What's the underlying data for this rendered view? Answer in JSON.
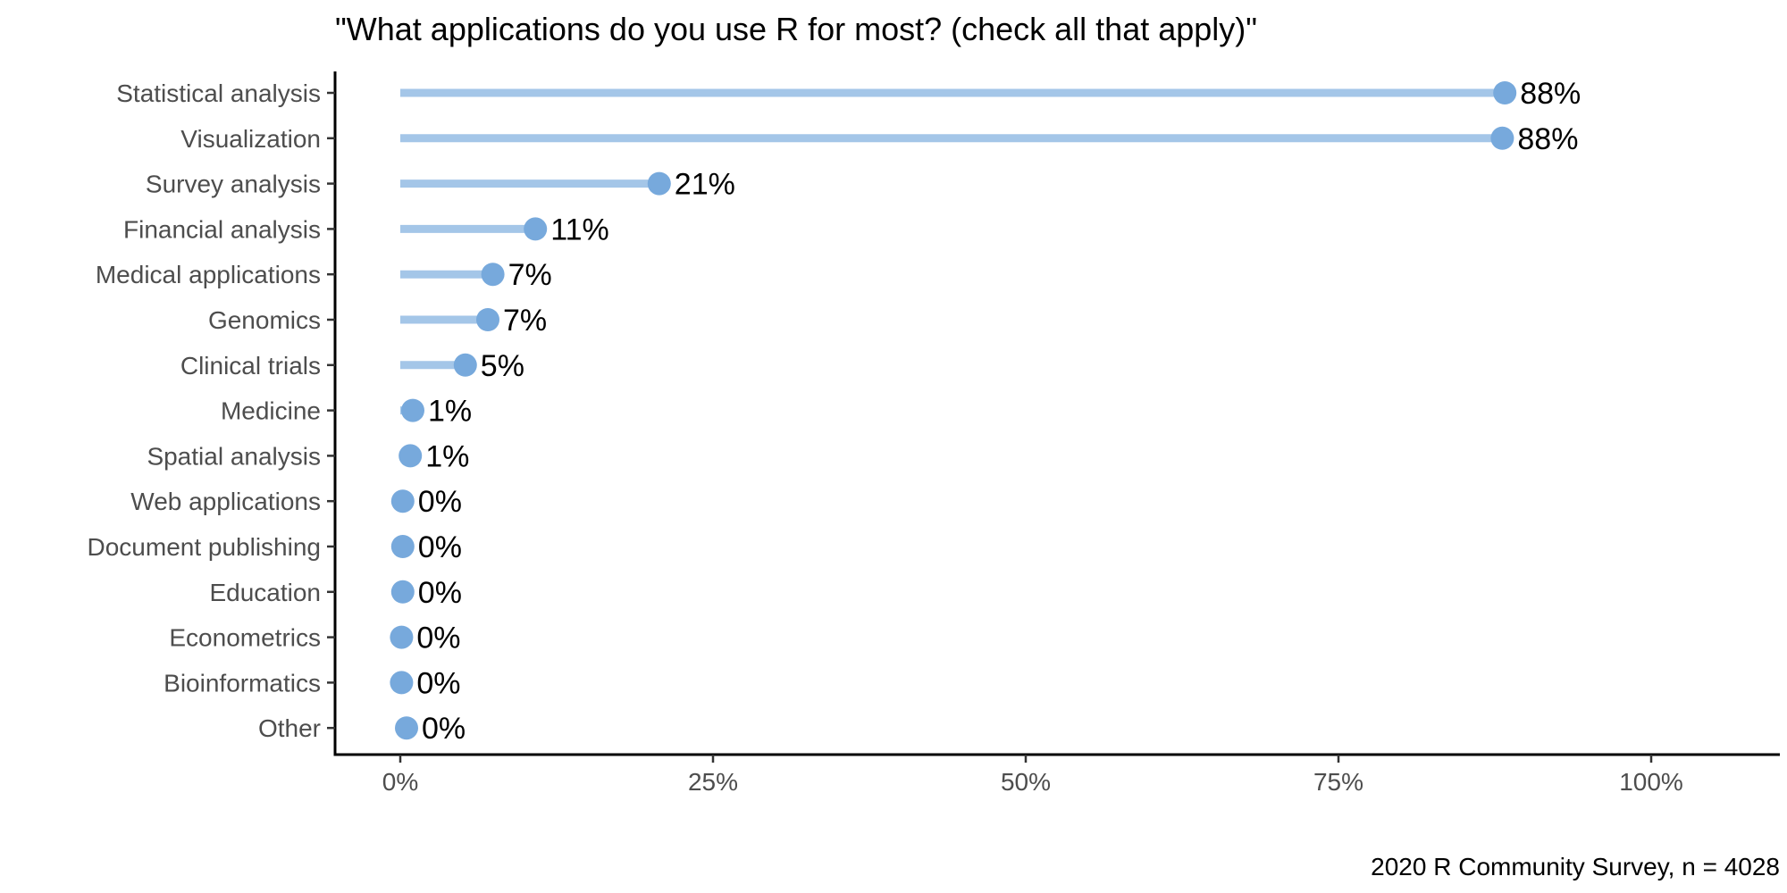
{
  "chart_data": {
    "type": "lollipop",
    "title": "\"What applications do you use R for most? (check all that apply)\"",
    "caption": "2020 R Community Survey, n = 4028",
    "categories": [
      "Statistical analysis",
      "Visualization",
      "Survey analysis",
      "Financial analysis",
      "Medical applications",
      "Genomics",
      "Clinical trials",
      "Medicine",
      "Spatial analysis",
      "Web applications",
      "Document publishing",
      "Education",
      "Econometrics",
      "Bioinformatics",
      "Other"
    ],
    "values": [
      0.883,
      0.881,
      0.207,
      0.108,
      0.074,
      0.07,
      0.052,
      0.01,
      0.008,
      0.002,
      0.002,
      0.002,
      0.001,
      0.001,
      0.005
    ],
    "value_labels": [
      "88%",
      "88%",
      "21%",
      "11%",
      "7%",
      "7%",
      "5%",
      "1%",
      "1%",
      "0%",
      "0%",
      "0%",
      "0%",
      "0%",
      "0%"
    ],
    "xlim": [
      -0.05,
      1.1
    ],
    "x_ticks": [
      0,
      0.25,
      0.5,
      0.75,
      1.0
    ],
    "x_tick_labels": [
      "0%",
      "25%",
      "50%",
      "75%",
      "100%"
    ],
    "xlabel": "",
    "ylabel": "",
    "grid": false,
    "colors": {
      "stem": "#a4c6e8",
      "point": "#77a9dc"
    }
  }
}
